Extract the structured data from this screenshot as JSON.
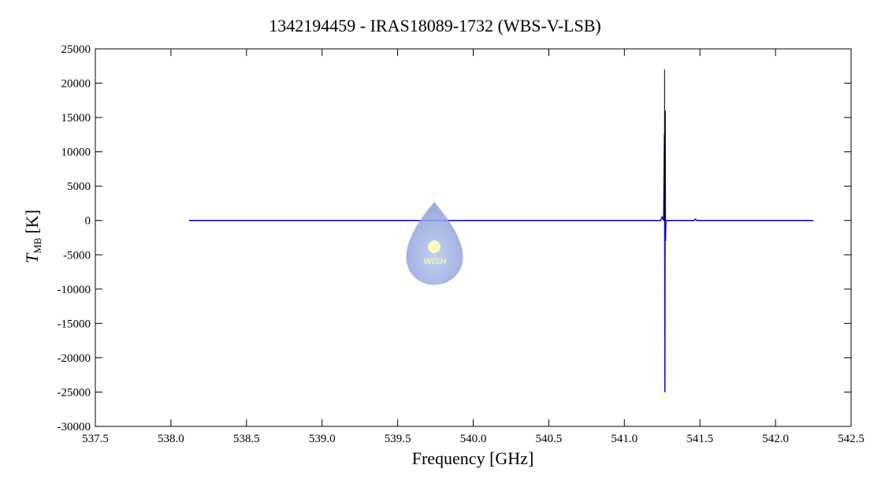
{
  "chart_data": {
    "type": "line",
    "title": "1342194459 - IRAS18089-1732 (WBS-V-LSB)",
    "x_label": "Frequency [GHz]",
    "y_label": {
      "symbol": "T",
      "subscript": "MB",
      "unit": "[K]"
    },
    "watermark": "WISH",
    "xlim": [
      537.5,
      542.5
    ],
    "xticks": [
      537.5,
      {
        "value": 538,
        "label": "538.0"
      },
      538.5,
      {
        "value": 539,
        "label": "539.0"
      },
      539.5,
      {
        "value": 540,
        "label": "540.0"
      },
      540.5,
      {
        "value": 541,
        "label": "541.0"
      },
      541.5,
      {
        "value": 542,
        "label": "542.0"
      },
      542.5
    ],
    "ylim": [
      -30000,
      25000
    ],
    "yticks": [
      -30000,
      -25000,
      -20000,
      -15000,
      -10000,
      -5000,
      0,
      5000,
      10000,
      15000,
      20000,
      25000
    ],
    "series": [
      {
        "color": "#0000dd",
        "x": [
          538.12,
          541.24,
          541.25,
          541.26,
          541.265,
          541.267,
          541.268,
          541.27,
          541.272,
          541.275,
          541.46,
          541.47,
          541.48,
          542.25
        ],
        "values": [
          0,
          0,
          500,
          0,
          12500,
          0,
          -25000,
          16000,
          -3000,
          0,
          0,
          200,
          0,
          0
        ]
      },
      {
        "color": "#000000",
        "x": [
          541.265,
          541.266,
          541.267
        ],
        "values": [
          0,
          22000,
          0
        ]
      }
    ]
  }
}
